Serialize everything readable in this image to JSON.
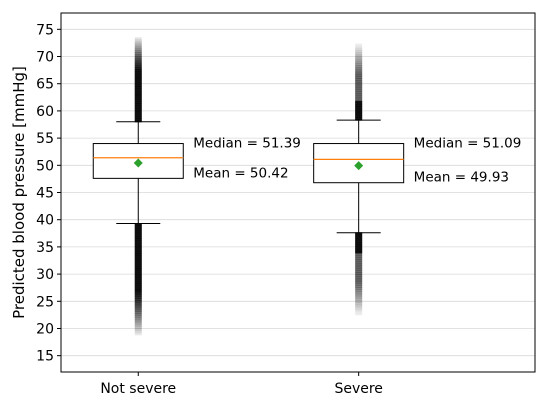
{
  "chart_data": {
    "type": "boxplot",
    "ylabel": "Predicted blood pressure [mmHg]",
    "xlabel": "",
    "ylim": [
      12,
      78
    ],
    "yticks": [
      15,
      20,
      25,
      30,
      35,
      40,
      45,
      50,
      55,
      60,
      65,
      70,
      75
    ],
    "grid": "horizontal",
    "categories": [
      "Not severe",
      "Severe"
    ],
    "series": [
      {
        "category": "Not severe",
        "whisker_low": 39.3,
        "q1": 47.6,
        "median": 51.39,
        "q3": 54.0,
        "whisker_high": 58.0,
        "mean": 50.42,
        "outliers_high_range": [
          58.0,
          73.5
        ],
        "outliers_low_range": [
          18.8,
          39.3
        ],
        "median_label": "Median = 51.39",
        "mean_label": "Mean = 50.42"
      },
      {
        "category": "Severe",
        "whisker_low": 37.6,
        "q1": 46.8,
        "median": 51.09,
        "q3": 54.0,
        "whisker_high": 58.3,
        "mean": 49.93,
        "outliers_high_range": [
          58.3,
          72.3
        ],
        "outliers_low_range": [
          22.5,
          37.6
        ],
        "median_label": "Median = 51.09",
        "mean_label": "Mean = 49.93"
      }
    ],
    "colors": {
      "box": "#000000",
      "median": "#ff7f0e",
      "mean": "#2ca02c",
      "outlier": "#000000",
      "grid": "#d9d9d9"
    }
  }
}
